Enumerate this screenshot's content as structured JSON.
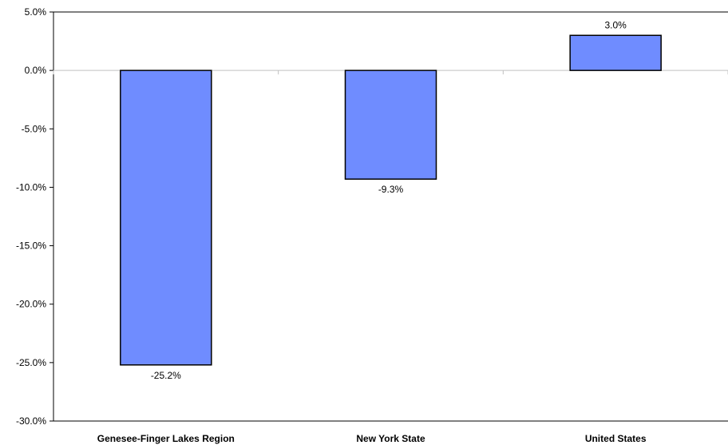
{
  "chart_data": {
    "type": "bar",
    "categories": [
      "Genesee-Finger Lakes Region",
      "New York State",
      "United States"
    ],
    "values": [
      -25.2,
      -9.3,
      3.0
    ],
    "data_labels": [
      "-25.2%",
      "-9.3%",
      "3.0%"
    ],
    "ylim": [
      -30,
      5
    ],
    "yticks": [
      5,
      0,
      -5,
      -10,
      -15,
      -20,
      -25,
      -30
    ],
    "ytick_labels": [
      "5.0%",
      "0.0%",
      "-5.0%",
      "-10.0%",
      "-15.0%",
      "-20.0%",
      "-25.0%",
      "-30.0%"
    ],
    "grid": false,
    "bar_color": "#6f8cff",
    "bar_edge_color": "#000000",
    "title": "",
    "xlabel": "",
    "ylabel": ""
  }
}
